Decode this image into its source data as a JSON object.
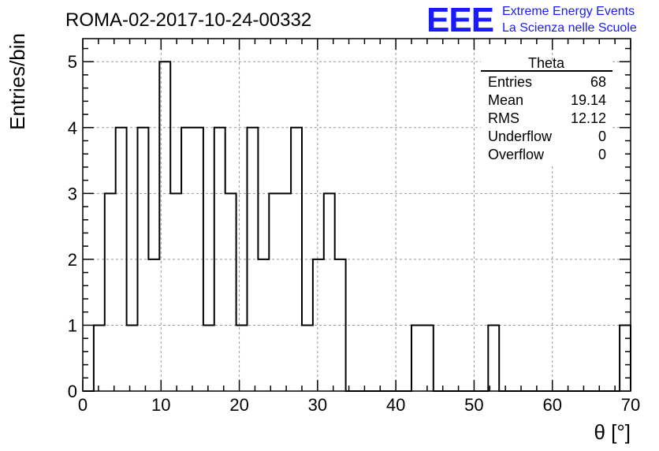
{
  "chart_data": {
    "type": "bar",
    "title": "ROMA-02-2017-10-24-00332",
    "xlabel": "θ [°]",
    "ylabel": "Entries/bin",
    "xlim": [
      0,
      70
    ],
    "ylim": [
      0,
      5.35
    ],
    "grid": true,
    "x_ticks": [
      0,
      10,
      20,
      30,
      40,
      50,
      60,
      70
    ],
    "y_ticks": [
      0,
      1,
      2,
      3,
      4,
      5
    ],
    "bin_width": 1.4,
    "bin_edges_start": 0,
    "values": [
      0,
      1,
      3,
      4,
      1,
      4,
      2,
      5,
      3,
      4,
      4,
      1,
      4,
      3,
      1,
      4,
      2,
      3,
      3,
      4,
      1,
      2,
      3,
      2,
      0,
      0,
      0,
      0,
      0,
      0,
      1,
      1,
      0,
      0,
      0,
      0,
      0,
      1,
      0,
      0,
      0,
      0,
      0,
      0,
      0,
      0,
      0,
      0,
      0,
      1
    ],
    "stats_box": {
      "title": "Theta",
      "rows": [
        {
          "label": "Entries",
          "value": "68"
        },
        {
          "label": "Mean",
          "value": "19.14"
        },
        {
          "label": "RMS",
          "value": "12.12"
        },
        {
          "label": "Underflow",
          "value": "0"
        },
        {
          "label": "Overflow",
          "value": "0"
        }
      ],
      "placement": "top-right"
    }
  },
  "logo": {
    "text": "EEE",
    "line1": "Extreme Energy Events",
    "line2": "La Scienza nelle Scuole",
    "color": "#1a1aff"
  }
}
